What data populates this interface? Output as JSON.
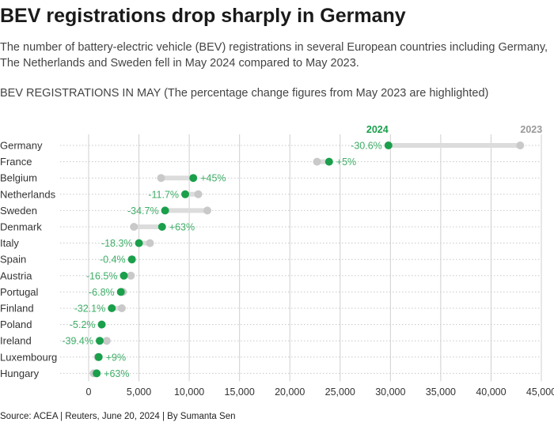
{
  "header": {
    "title": "BEV registrations drop sharply in Germany",
    "subtitle": "The number of battery-electric vehicle (BEV) registrations in several European countries including Germany, The Netherlands and Sweden fell in May 2024 compared to May 2023.",
    "chart_label": "BEV REGISTRATIONS IN MAY (The percentage change figures from May 2023 are highlighted)"
  },
  "footer": {
    "source": "Source: ACEA | Reuters, June 20, 2024 | By Sumanta Sen"
  },
  "colors": {
    "accent_2024": "#1a9f4b",
    "change_label": "#3fae68",
    "dot_2023": "#c9c9c9",
    "connector": "#dcdcdc",
    "grid": "#cfcfcf"
  },
  "chart_data": {
    "type": "dumbbell",
    "series": [
      {
        "name": "2024",
        "values": [
          29800,
          23900,
          10400,
          9600,
          7600,
          7300,
          5000,
          4300,
          3500,
          3200,
          2300,
          1300,
          1100,
          1000,
          800
        ]
      },
      {
        "name": "2023",
        "values": [
          42900,
          22700,
          7200,
          10900,
          11800,
          4500,
          6100,
          4300,
          4200,
          3400,
          3300,
          1300,
          1800,
          900,
          500
        ]
      }
    ],
    "categories": [
      "Germany",
      "France",
      "Belgium",
      "Netherlands",
      "Sweden",
      "Denmark",
      "Italy",
      "Spain",
      "Austria",
      "Portugal",
      "Finland",
      "Poland",
      "Ireland",
      "Luxembourg",
      "Hungary"
    ],
    "change_labels": [
      "-30.6%",
      "+5%",
      "+45%",
      "-11.7%",
      "-34.7%",
      "+63%",
      "-18.3%",
      "-0.4%",
      "-16.5%",
      "-6.8%",
      "-32.1%",
      "-5.2%",
      "-39.4%",
      "+9%",
      "+63%"
    ],
    "xlim": [
      0,
      45000
    ],
    "xticks": [
      0,
      5000,
      10000,
      15000,
      20000,
      25000,
      30000,
      35000,
      40000,
      45000
    ],
    "xtick_labels": [
      "0",
      "5,000",
      "10,000",
      "15,000",
      "20,000",
      "25,000",
      "30,000",
      "35,000",
      "40,000",
      "45,000"
    ],
    "grid": true
  }
}
